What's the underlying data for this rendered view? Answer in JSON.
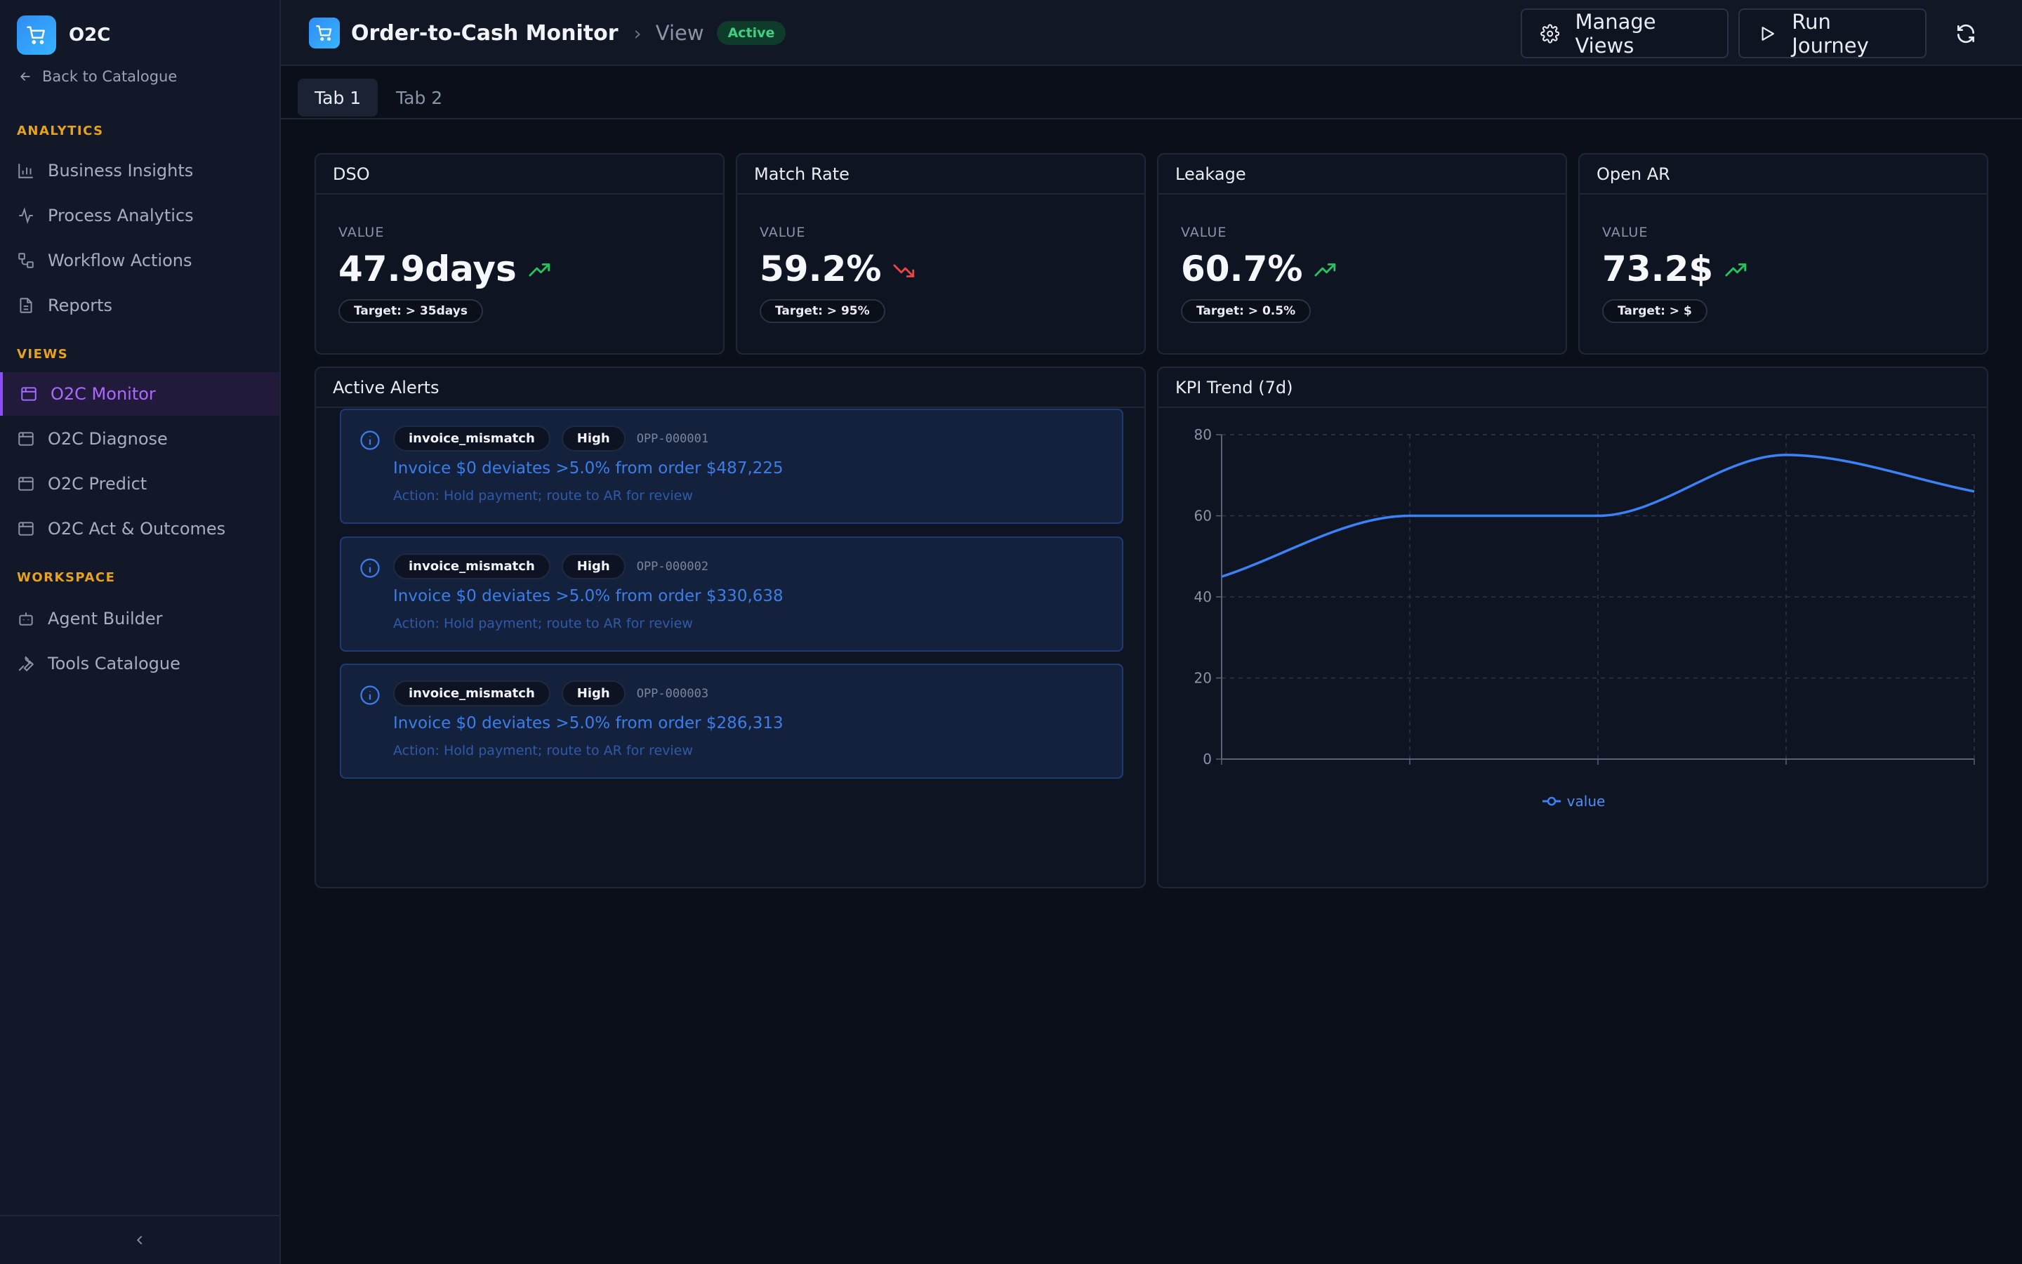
{
  "app": {
    "name": "O2C",
    "back_label": "Back to Catalogue"
  },
  "sidebar": {
    "sections": [
      {
        "label": "ANALYTICS",
        "items": [
          "Business Insights",
          "Process Analytics",
          "Workflow Actions",
          "Reports"
        ]
      },
      {
        "label": "VIEWS",
        "items": [
          "O2C Monitor",
          "O2C Diagnose",
          "O2C Predict",
          "O2C Act & Outcomes"
        ]
      },
      {
        "label": "WORKSPACE",
        "items": [
          "Agent Builder",
          "Tools Catalogue"
        ]
      }
    ],
    "active_item": "O2C Monitor"
  },
  "header": {
    "title": "Order-to-Cash Monitor",
    "crumb_view": "View",
    "status": "Active",
    "manage_views": "Manage Views",
    "run_journey": "Run Journey"
  },
  "tabs": [
    "Tab 1",
    "Tab 2"
  ],
  "active_tab": "Tab 1",
  "kpis": [
    {
      "title": "DSO",
      "label": "VALUE",
      "value": "47.9days",
      "trend": "up",
      "target": "Target: > 35days"
    },
    {
      "title": "Match Rate",
      "label": "VALUE",
      "value": "59.2%",
      "trend": "down",
      "target": "Target: > 95%"
    },
    {
      "title": "Leakage",
      "label": "VALUE",
      "value": "60.7%",
      "trend": "up",
      "target": "Target: > 0.5%"
    },
    {
      "title": "Open AR",
      "label": "VALUE",
      "value": "73.2$",
      "trend": "up",
      "target": "Target: > $"
    }
  ],
  "alerts_panel": {
    "title": "Active Alerts",
    "alerts": [
      {
        "type": "invoice_mismatch",
        "severity": "High",
        "id": "OPP-000001",
        "message": "Invoice $0 deviates >5.0% from order $487,225",
        "action": "Action: Hold payment; route to AR for review"
      },
      {
        "type": "invoice_mismatch",
        "severity": "High",
        "id": "OPP-000002",
        "message": "Invoice $0 deviates >5.0% from order $330,638",
        "action": "Action: Hold payment; route to AR for review"
      },
      {
        "type": "invoice_mismatch",
        "severity": "High",
        "id": "OPP-000003",
        "message": "Invoice $0 deviates >5.0% from order $286,313",
        "action": "Action: Hold payment; route to AR for review"
      }
    ]
  },
  "colors": {
    "accent": "#8b4dff",
    "line": "#3b82f6",
    "up": "#22c55e",
    "down": "#ef4444",
    "warning": "#e8a21c"
  },
  "chart_data": {
    "type": "line",
    "title": "KPI Trend (7d)",
    "x": [
      0,
      1,
      2,
      3,
      4
    ],
    "series": [
      {
        "name": "value",
        "values": [
          45,
          60,
          60,
          75,
          66
        ]
      }
    ],
    "yticks": [
      0,
      20,
      40,
      60,
      80
    ],
    "ylim": [
      0,
      80
    ],
    "grid": true,
    "legend": "bottom-center"
  }
}
